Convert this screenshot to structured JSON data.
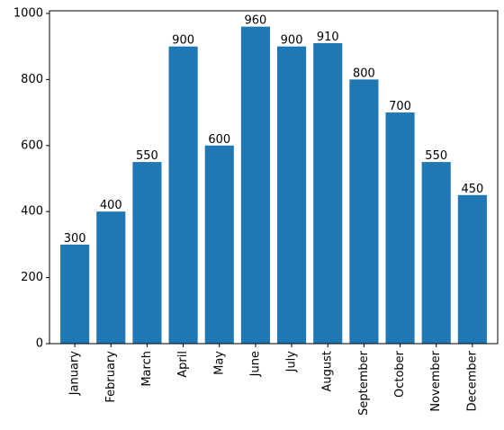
{
  "chart_data": {
    "type": "bar",
    "title": "",
    "xlabel": "",
    "ylabel": "",
    "categories": [
      "January",
      "February",
      "March",
      "April",
      "May",
      "June",
      "July",
      "August",
      "September",
      "October",
      "November",
      "December"
    ],
    "values": [
      300,
      400,
      550,
      900,
      600,
      960,
      900,
      910,
      800,
      700,
      550,
      450
    ],
    "data_labels": [
      "300",
      "400",
      "550",
      "900",
      "600",
      "960",
      "900",
      "910",
      "800",
      "700",
      "550",
      "450"
    ],
    "y_ticks": [
      "0",
      "200",
      "400",
      "600",
      "800",
      "1000"
    ],
    "ylim": [
      0,
      1008
    ],
    "bar_color": "#1f77b4",
    "grid": false,
    "x_tick_rotation": "vertical"
  }
}
